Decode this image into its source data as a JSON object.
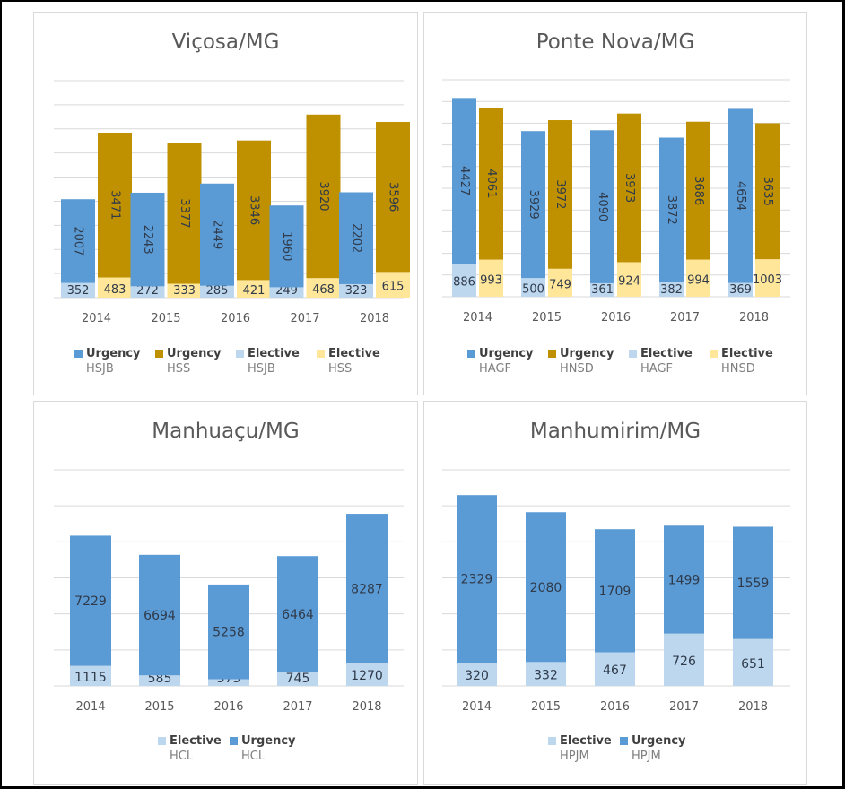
{
  "colors": {
    "urgency_blue": "#5b9bd5",
    "urgency_gold": "#bf9000",
    "elective_lightblue": "#bdd7ee",
    "elective_lightyellow": "#ffe699",
    "grid": "#d9d9d9",
    "label_dark": "#2f3a4a",
    "axis_text": "#595959"
  },
  "chart_data": [
    {
      "id": "vicosa",
      "type": "bar",
      "stacked": true,
      "title": "Viçosa/MG",
      "categories": [
        "2014",
        "2015",
        "2016",
        "2017",
        "2018"
      ],
      "stacks": [
        {
          "hospital": "HSJB",
          "series": [
            {
              "name": "Elective HSJB",
              "values": [
                352,
                272,
                285,
                249,
                323
              ],
              "color_key": "elective_lightblue"
            },
            {
              "name": "Urgency HSJB",
              "values": [
                2007,
                2243,
                2449,
                1960,
                2202
              ],
              "color_key": "urgency_blue",
              "label_rotated": true
            }
          ]
        },
        {
          "hospital": "HSS",
          "series": [
            {
              "name": "Elective HSS",
              "values": [
                483,
                333,
                421,
                468,
                615
              ],
              "color_key": "elective_lightyellow"
            },
            {
              "name": "Urgency HSS",
              "values": [
                3471,
                3377,
                3346,
                3920,
                3596
              ],
              "color_key": "urgency_gold",
              "label_rotated": true
            }
          ]
        }
      ],
      "legend": [
        {
          "name": "Urgency",
          "sub": "HSJB",
          "color_key": "urgency_blue"
        },
        {
          "name": "Urgency",
          "sub": "HSS",
          "color_key": "urgency_gold"
        },
        {
          "name": "Elective",
          "sub": "HSJB",
          "color_key": "elective_lightblue"
        },
        {
          "name": "Elective",
          "sub": "HSS",
          "color_key": "elective_lightyellow"
        }
      ],
      "legend_position": "bottom",
      "grid": true,
      "ylim": [
        0,
        5200
      ],
      "grid_step": 580
    },
    {
      "id": "ponte-nova",
      "type": "bar",
      "stacked": true,
      "title": "Ponte Nova/MG",
      "categories": [
        "2014",
        "2015",
        "2016",
        "2017",
        "2018"
      ],
      "stacks": [
        {
          "hospital": "HAGF",
          "series": [
            {
              "name": "Elective HAGF",
              "values": [
                886,
                500,
                361,
                382,
                369
              ],
              "color_key": "elective_lightblue"
            },
            {
              "name": "Urgency HAGF",
              "values": [
                4427,
                3929,
                4090,
                3872,
                4654
              ],
              "color_key": "urgency_blue",
              "label_rotated": true
            }
          ]
        },
        {
          "hospital": "HNSD",
          "series": [
            {
              "name": "Elective HNSD",
              "values": [
                993,
                749,
                924,
                994,
                1003
              ],
              "color_key": "elective_lightyellow"
            },
            {
              "name": "Urgency HNSD",
              "values": [
                4061,
                3972,
                3973,
                3686,
                3635
              ],
              "color_key": "urgency_gold",
              "label_rotated": true
            }
          ]
        }
      ],
      "legend": [
        {
          "name": "Urgency",
          "sub": "HAGF",
          "color_key": "urgency_blue"
        },
        {
          "name": "Urgency",
          "sub": "HNSD",
          "color_key": "urgency_gold"
        },
        {
          "name": "Elective",
          "sub": "HAGF",
          "color_key": "elective_lightblue"
        },
        {
          "name": "Elective",
          "sub": "HNSD",
          "color_key": "elective_lightyellow"
        }
      ],
      "legend_position": "bottom",
      "grid": true,
      "ylim": [
        0,
        5800
      ],
      "grid_step": 570
    },
    {
      "id": "manhuacu",
      "type": "bar",
      "stacked": true,
      "title": "Manhuaçu/MG",
      "categories": [
        "2014",
        "2015",
        "2016",
        "2017",
        "2018"
      ],
      "stacks": [
        {
          "hospital": "HCL",
          "series": [
            {
              "name": "Elective HCL",
              "values": [
                1115,
                585,
                373,
                745,
                1270
              ],
              "color_key": "elective_lightblue"
            },
            {
              "name": "Urgency HCL",
              "values": [
                7229,
                6694,
                5258,
                6464,
                8287
              ],
              "color_key": "urgency_blue"
            }
          ]
        }
      ],
      "legend": [
        {
          "name": "Elective",
          "sub": "HCL",
          "color_key": "elective_lightblue"
        },
        {
          "name": "Urgency",
          "sub": "HCL",
          "color_key": "urgency_blue"
        }
      ],
      "legend_position": "bottom",
      "grid": true,
      "ylim": [
        0,
        12000
      ],
      "grid_step": 2000
    },
    {
      "id": "manhumirim",
      "type": "bar",
      "stacked": true,
      "title": "Manhumirim/MG",
      "categories": [
        "2014",
        "2015",
        "2016",
        "2017",
        "2018"
      ],
      "stacks": [
        {
          "hospital": "HPJM",
          "series": [
            {
              "name": "Elective HPJM",
              "values": [
                320,
                332,
                467,
                726,
                651
              ],
              "color_key": "elective_lightblue"
            },
            {
              "name": "Urgency HPJM",
              "values": [
                2329,
                2080,
                1709,
                1499,
                1559
              ],
              "color_key": "urgency_blue"
            }
          ]
        }
      ],
      "legend": [
        {
          "name": "Elective",
          "sub": "HPJM",
          "color_key": "elective_lightblue"
        },
        {
          "name": "Urgency",
          "sub": "HPJM",
          "color_key": "urgency_blue"
        }
      ],
      "legend_position": "bottom",
      "grid": true,
      "ylim": [
        0,
        3000
      ],
      "grid_step": 500
    }
  ]
}
